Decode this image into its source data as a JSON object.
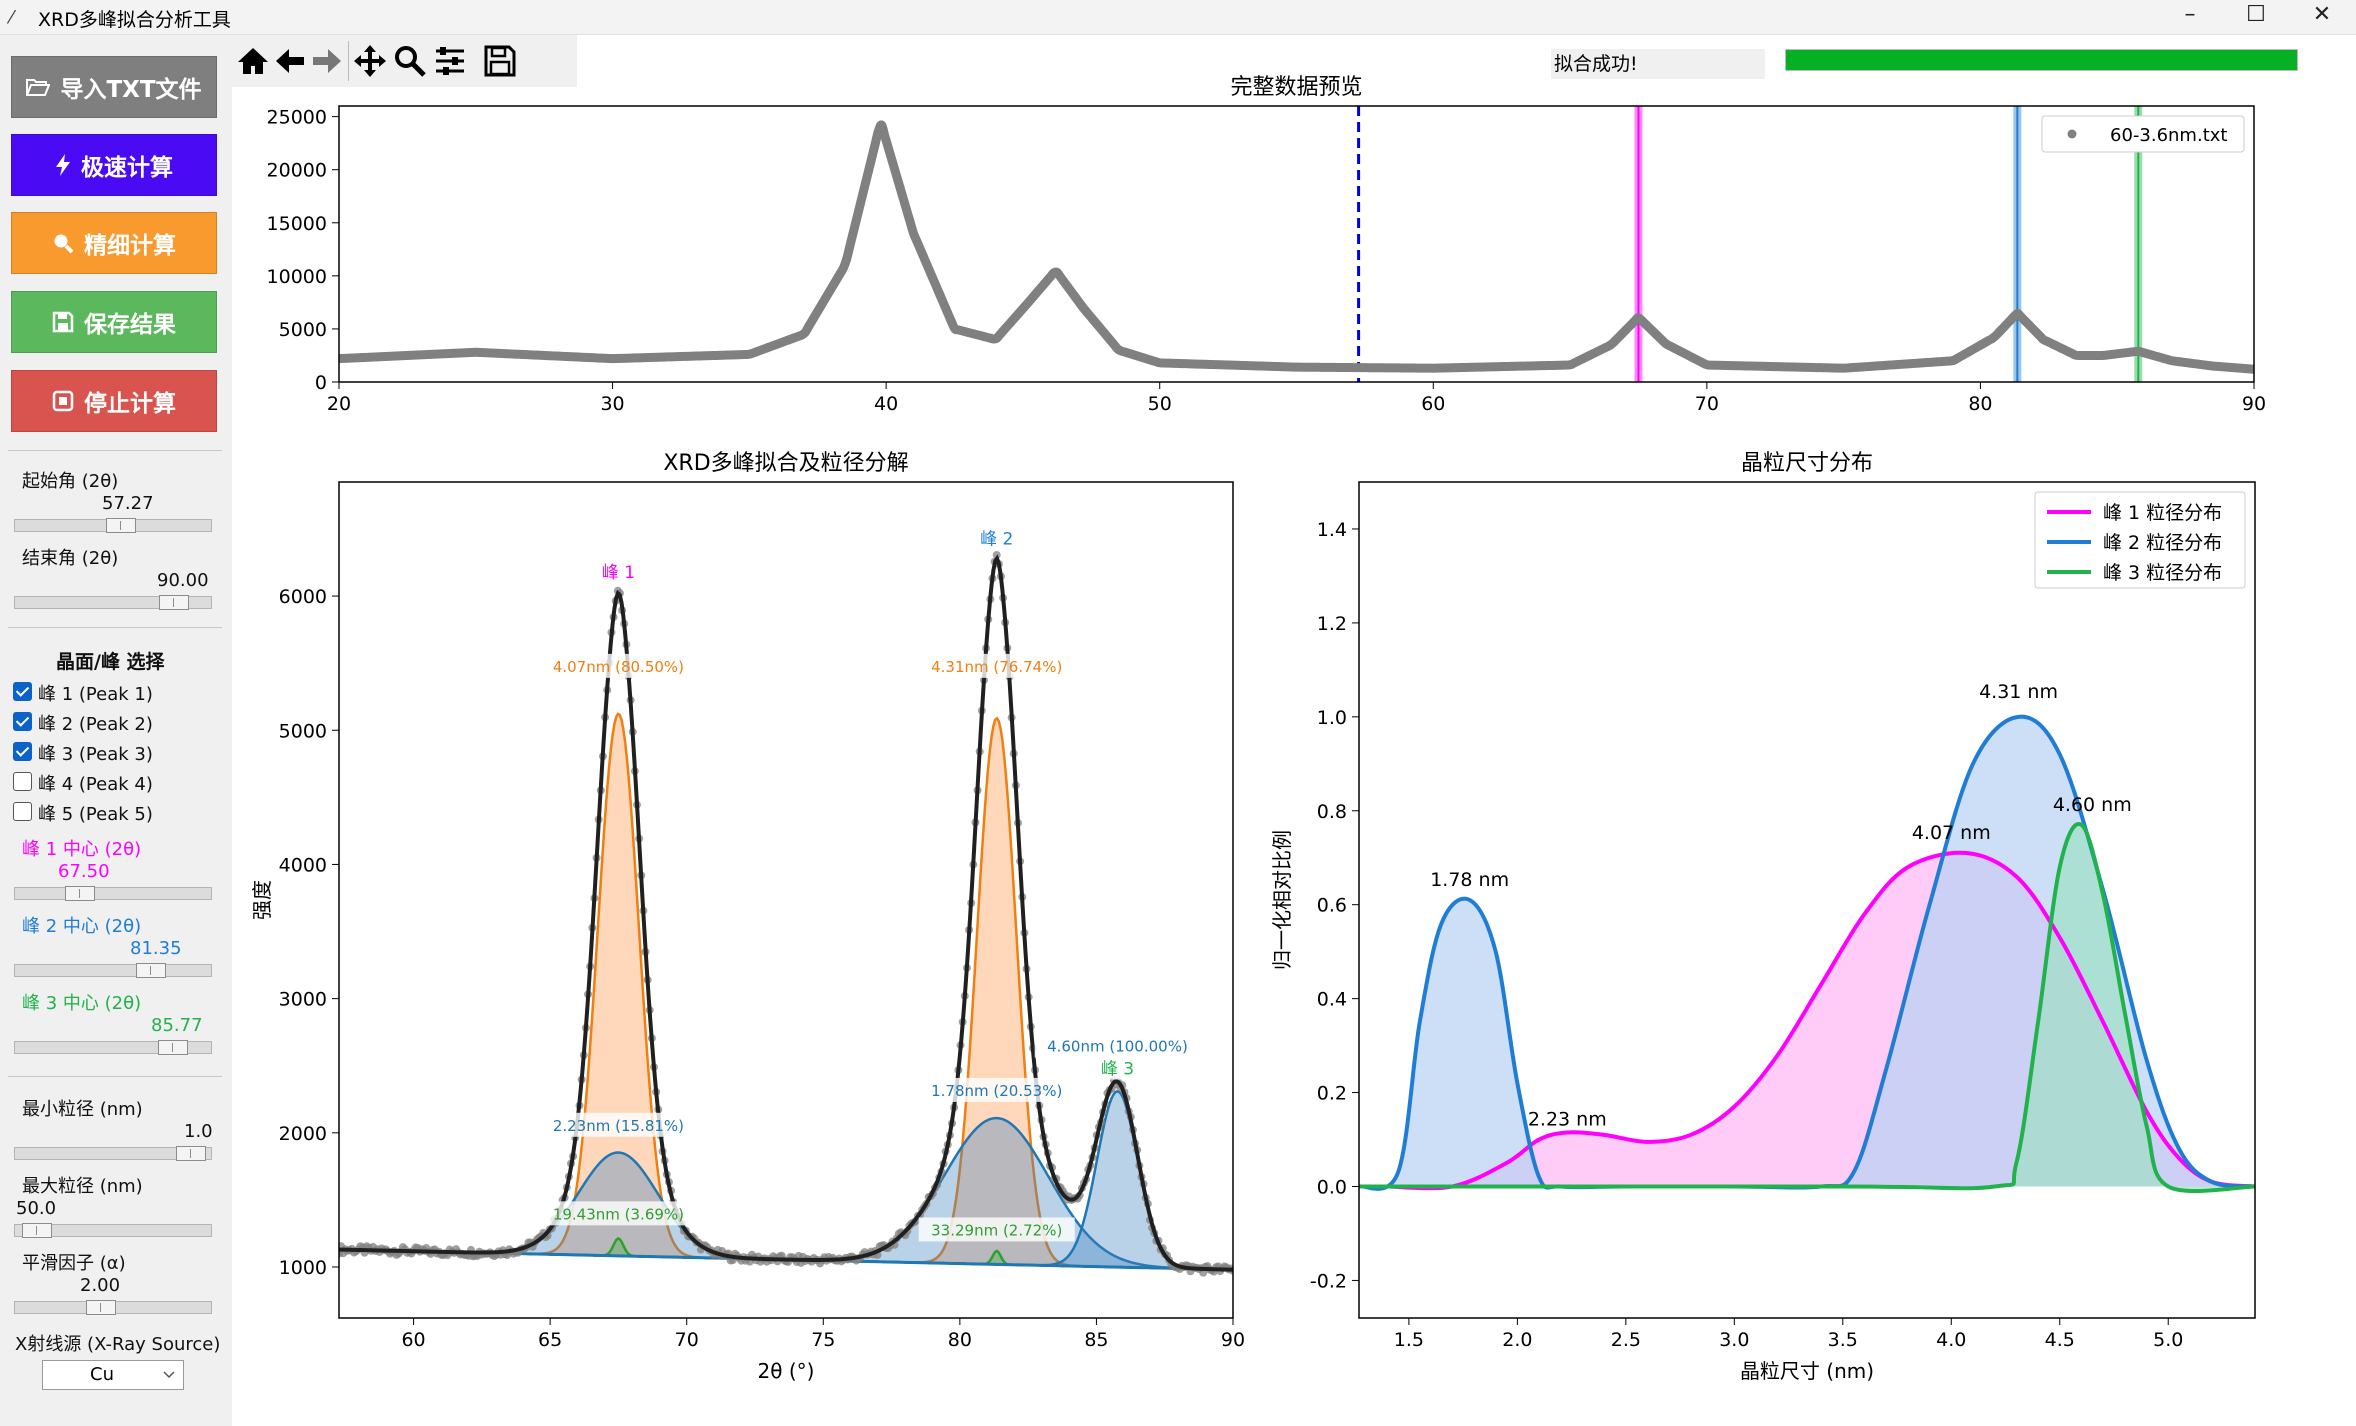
{
  "window": {
    "title": "XRD多峰拟合分析工具",
    "minimize": "–",
    "maximize": "☐",
    "close": "✕"
  },
  "sidebar": {
    "buttons": [
      {
        "label": "导入TXT文件",
        "icon": "folder-open-icon",
        "color": "#7f7f7f"
      },
      {
        "label": "极速计算",
        "icon": "lightning-icon",
        "color": "#4a0af3"
      },
      {
        "label": "精细计算",
        "icon": "magnifier-icon",
        "color": "#f89a2e"
      },
      {
        "label": "保存结果",
        "icon": "floppy-disk-icon",
        "color": "#5cb85c"
      },
      {
        "label": "停止计算",
        "icon": "stop-icon",
        "color": "#d9534f"
      }
    ],
    "start_angle": {
      "label": "起始角 (2θ)",
      "value": "57.27",
      "fraction": 0.54
    },
    "end_angle": {
      "label": "结束角 (2θ)",
      "value": "90.00",
      "fraction": 0.86
    },
    "peak_select_title": "晶面/峰 选择",
    "peaks": [
      {
        "label": "峰 1 (Peak 1)",
        "checked": true
      },
      {
        "label": "峰 2 (Peak 2)",
        "checked": true
      },
      {
        "label": "峰 3 (Peak 3)",
        "checked": true
      },
      {
        "label": "峰 4 (Peak 4)",
        "checked": false
      },
      {
        "label": "峰 5 (Peak 5)",
        "checked": false
      }
    ],
    "centers": [
      {
        "label": "峰 1 中心 (2θ)",
        "value": "67.50",
        "color": "#ff00ff",
        "fraction": 0.3
      },
      {
        "label": "峰 2 中心 (2θ)",
        "value": "81.35",
        "color": "#1f7ed4",
        "fraction": 0.72
      },
      {
        "label": "峰 3 中心 (2θ)",
        "value": "85.77",
        "color": "#22b24c",
        "fraction": 0.85
      }
    ],
    "min_size": {
      "label": "最小粒径 (nm)",
      "value": "1.0",
      "fraction": 0.96
    },
    "max_size": {
      "label": "最大粒径 (nm)",
      "value": "50.0",
      "fraction": 0.04
    },
    "smooth": {
      "label": "平滑因子 (α)",
      "value": "2.00",
      "fraction": 0.42
    },
    "xray": {
      "label": "X射线源 (X-Ray Source)",
      "value": "Cu"
    }
  },
  "toolbar": {
    "tools": [
      "home-icon",
      "back-arrow-icon",
      "forward-arrow-icon",
      "pan-icon",
      "zoom-icon",
      "configure-subplots-icon",
      "save-figure-icon"
    ]
  },
  "status": {
    "text": "拟合成功!",
    "progress": 1.0
  },
  "chart_data": [
    {
      "type": "line",
      "title": "完整数据预览",
      "xlim": [
        20,
        90
      ],
      "ylim": [
        0,
        26000
      ],
      "xticks": [
        "20",
        "30",
        "40",
        "50",
        "60",
        "70",
        "80",
        "90"
      ],
      "yticks": [
        "0",
        "5000",
        "10000",
        "15000",
        "20000",
        "25000"
      ],
      "legend": "60-3.6nm.txt",
      "legend_position": "top-right",
      "series": [
        {
          "x": [
            20,
            25,
            30,
            35,
            37,
            38.5,
            39.8,
            41,
            42.5,
            44,
            45.2,
            46.2,
            47.2,
            48.5,
            50,
            55,
            60,
            65,
            66.5,
            67.5,
            68.5,
            70,
            75,
            79,
            80.5,
            81.35,
            82.3,
            83.5,
            84.5,
            85.77,
            87,
            88.5,
            90
          ],
          "y": [
            2200,
            2800,
            2200,
            2600,
            4500,
            11000,
            24500,
            14000,
            5000,
            4000,
            7500,
            10500,
            7000,
            3000,
            1800,
            1400,
            1300,
            1600,
            3500,
            6100,
            3600,
            1600,
            1300,
            2000,
            4200,
            6500,
            4000,
            2500,
            2500,
            2900,
            2000,
            1500,
            1200
          ],
          "color": "#808080"
        }
      ],
      "vlines": [
        {
          "x": 57.27,
          "color": "#0000dd",
          "style": "dashed"
        },
        {
          "x": 67.5,
          "color": "#ff00ff",
          "style": "band"
        },
        {
          "x": 81.35,
          "color": "#1f7ed4",
          "style": "band"
        },
        {
          "x": 85.77,
          "color": "#22b24c",
          "style": "band"
        }
      ]
    },
    {
      "type": "line",
      "title": "XRD多峰拟合及粒径分解",
      "xlabel": "2θ (°)",
      "ylabel": "强度",
      "xlim": [
        57.27,
        90
      ],
      "ylim": [
        620,
        6850
      ],
      "xticks": [
        "60",
        "65",
        "70",
        "75",
        "80",
        "85",
        "90"
      ],
      "yticks": [
        "1000",
        "2000",
        "3000",
        "4000",
        "5000",
        "6000"
      ],
      "peak_labels": [
        {
          "text": "峰 1",
          "x": 67.5,
          "y": 6150,
          "color": "#ff00ff"
        },
        {
          "text": "峰 2",
          "x": 81.35,
          "y": 6400,
          "color": "#1f7ed4"
        },
        {
          "text": "峰 3",
          "x": 85.77,
          "y": 2450,
          "color": "#22b24c"
        }
      ],
      "annotations": [
        {
          "text": "4.07nm (80.50%)",
          "x": 67.5,
          "y": 5450,
          "color": "#f07f10"
        },
        {
          "text": "2.23nm (15.81%)",
          "x": 67.5,
          "y": 2030,
          "color": "#1f77b4"
        },
        {
          "text": "19.43nm (3.69%)",
          "x": 67.5,
          "y": 1370,
          "color": "#2ca02c"
        },
        {
          "text": "4.31nm (76.74%)",
          "x": 81.35,
          "y": 5450,
          "color": "#f07f10"
        },
        {
          "text": "1.78nm (20.53%)",
          "x": 81.35,
          "y": 2290,
          "color": "#1f77b4"
        },
        {
          "text": "33.29nm (2.72%)",
          "x": 81.35,
          "y": 1250,
          "color": "#2ca02c"
        },
        {
          "text": "4.60nm (100.00%)",
          "x": 85.77,
          "y": 2620,
          "color": "#1f77b4"
        }
      ],
      "components": [
        {
          "name": "峰1 主成分",
          "center": 67.5,
          "amplitude": 4040,
          "sigma": 0.75,
          "color": "#f07f10"
        },
        {
          "name": "峰1 次成分",
          "center": 67.5,
          "amplitude": 770,
          "sigma": 1.45,
          "color": "#1f77b4"
        },
        {
          "name": "峰1 第三成分",
          "center": 67.5,
          "amplitude": 130,
          "sigma": 0.18,
          "color": "#2ca02c"
        },
        {
          "name": "峰2 主成分",
          "center": 81.35,
          "amplitude": 4070,
          "sigma": 0.72,
          "color": "#f07f10"
        },
        {
          "name": "峰2 次成分",
          "center": 81.35,
          "amplitude": 1090,
          "sigma": 1.9,
          "color": "#1f77b4"
        },
        {
          "name": "峰2 第三成分",
          "center": 81.35,
          "amplitude": 100,
          "sigma": 0.15,
          "color": "#2ca02c"
        },
        {
          "name": "峰3 主成分",
          "center": 85.77,
          "amplitude": 1310,
          "sigma": 0.75,
          "color": "#1f77b4"
        }
      ],
      "background": {
        "x": [
          57.27,
          90
        ],
        "y": [
          1130,
          980
        ]
      },
      "fit_color": "#202020",
      "data_color": "#808080"
    },
    {
      "type": "line",
      "title": "晶粒尺寸分布",
      "xlabel": "晶粒尺寸 (nm)",
      "ylabel": "归一化相对比例",
      "xlim": [
        1.27,
        5.4
      ],
      "ylim": [
        -0.28,
        1.5
      ],
      "xticks": [
        "1.5",
        "2.0",
        "2.5",
        "3.0",
        "3.5",
        "4.0",
        "4.5",
        "5.0"
      ],
      "yticks": [
        "-0.2",
        "0.0",
        "0.2",
        "0.4",
        "0.6",
        "0.8",
        "1.0",
        "1.2",
        "1.4"
      ],
      "legend_position": "top-right",
      "series": [
        {
          "name": "峰 1 粒径分布",
          "color": "#ff00ff",
          "fill": "#ffb6f5",
          "x": [
            1.4,
            1.7,
            1.95,
            2.1,
            2.23,
            2.4,
            2.6,
            2.8,
            3.0,
            3.2,
            3.4,
            3.6,
            3.8,
            4.07,
            4.3,
            4.5,
            4.7,
            4.9,
            5.05,
            5.2,
            5.4
          ],
          "y": [
            0,
            0,
            0.05,
            0.1,
            0.115,
            0.11,
            0.095,
            0.11,
            0.17,
            0.28,
            0.43,
            0.58,
            0.68,
            0.71,
            0.66,
            0.53,
            0.35,
            0.16,
            0.06,
            0.01,
            0
          ]
        },
        {
          "name": "峰 2 粒径分布",
          "color": "#1f7ed4",
          "fill": "#b8d2f4",
          "x": [
            1.27,
            1.45,
            1.55,
            1.65,
            1.78,
            1.9,
            2.0,
            2.1,
            2.2,
            2.5,
            3.0,
            3.4,
            3.55,
            3.7,
            3.9,
            4.1,
            4.31,
            4.5,
            4.7,
            4.9,
            5.05,
            5.2,
            5.4
          ],
          "y": [
            0,
            0.03,
            0.35,
            0.56,
            0.61,
            0.5,
            0.22,
            0.02,
            0,
            0,
            0,
            0,
            0.03,
            0.25,
            0.6,
            0.9,
            1.0,
            0.92,
            0.63,
            0.27,
            0.08,
            0.01,
            0
          ]
        },
        {
          "name": "峰 3 粒径分布",
          "color": "#22b24c",
          "fill": "#9fdfc4",
          "x": [
            1.27,
            3.5,
            4.2,
            4.3,
            4.4,
            4.5,
            4.6,
            4.7,
            4.8,
            4.9,
            5.0,
            5.4
          ],
          "y": [
            0,
            0,
            0,
            0.05,
            0.35,
            0.68,
            0.77,
            0.62,
            0.37,
            0.13,
            0,
            0
          ]
        }
      ],
      "annotations": [
        {
          "text": "1.78 nm",
          "x": 1.78,
          "y": 0.64
        },
        {
          "text": "2.23 nm",
          "x": 2.23,
          "y": 0.13
        },
        {
          "text": "4.07 nm",
          "x": 4.0,
          "y": 0.74
        },
        {
          "text": "4.31 nm",
          "x": 4.31,
          "y": 1.04
        },
        {
          "text": "4.60 nm",
          "x": 4.65,
          "y": 0.8
        }
      ]
    }
  ]
}
